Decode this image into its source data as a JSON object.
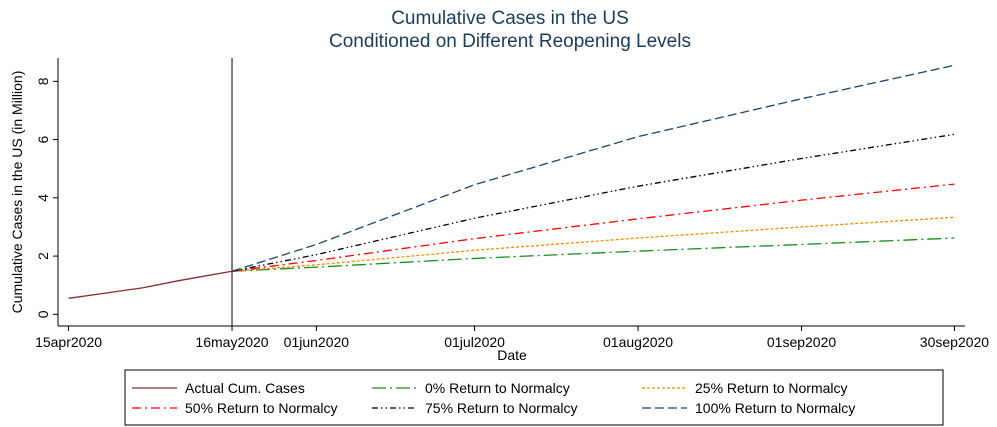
{
  "chart_data": {
    "type": "line",
    "title": "Cumulative Cases in the US",
    "subtitle": "Conditioned on Different Reopening Levels",
    "x_label": "Date",
    "y_label": "Cumulative Cases in the US (in Million)",
    "xlim": [
      "2020-04-13",
      "2020-10-02"
    ],
    "xticks": [
      {
        "value": "2020-04-15",
        "label": "15apr2020"
      },
      {
        "value": "2020-05-16",
        "label": "16may2020"
      },
      {
        "value": "2020-06-01",
        "label": "01jun2020"
      },
      {
        "value": "2020-07-01",
        "label": "01jul2020"
      },
      {
        "value": "2020-08-01",
        "label": "01aug2020"
      },
      {
        "value": "2020-09-01",
        "label": "01sep2020"
      },
      {
        "value": "2020-09-30",
        "label": "30sep2020"
      }
    ],
    "ylim": [
      -0.4,
      8.8
    ],
    "yticks": [
      0,
      2,
      4,
      6,
      8
    ],
    "vline": "2020-05-16",
    "series": [
      {
        "name": "Actual Cum. Cases",
        "color": "#8c2a2a",
        "dash": "none",
        "x": [
          "2020-04-15",
          "2020-04-22",
          "2020-04-29",
          "2020-05-06",
          "2020-05-16"
        ],
        "values": [
          0.55,
          0.73,
          0.91,
          1.16,
          1.48
        ]
      },
      {
        "name": "0% Return to Normalcy",
        "color": "#1a8c1a",
        "dash": "14 4 2 4",
        "x": [
          "2020-05-16",
          "2020-06-01",
          "2020-07-01",
          "2020-08-01",
          "2020-09-01",
          "2020-09-30"
        ],
        "values": [
          1.48,
          1.62,
          1.92,
          2.17,
          2.4,
          2.62
        ]
      },
      {
        "name": "25% Return to Normalcy",
        "color": "#ff8c00",
        "dash": "3 2",
        "x": [
          "2020-05-16",
          "2020-06-01",
          "2020-07-01",
          "2020-08-01",
          "2020-09-01",
          "2020-09-30"
        ],
        "values": [
          1.48,
          1.7,
          2.2,
          2.62,
          3.0,
          3.33
        ]
      },
      {
        "name": "50% Return to Normalcy",
        "color": "#ff0000",
        "dash": "9 4 2 4",
        "x": [
          "2020-05-16",
          "2020-06-01",
          "2020-07-01",
          "2020-08-01",
          "2020-09-01",
          "2020-09-30"
        ],
        "values": [
          1.48,
          1.85,
          2.6,
          3.28,
          3.92,
          4.47
        ]
      },
      {
        "name": "75% Return to Normalcy",
        "color": "#000000",
        "dash": "6 3 1.5 3 1.5 3",
        "x": [
          "2020-05-16",
          "2020-06-01",
          "2020-07-01",
          "2020-08-01",
          "2020-09-01",
          "2020-09-30"
        ],
        "values": [
          1.48,
          2.05,
          3.3,
          4.4,
          5.35,
          6.18
        ]
      },
      {
        "name": "100% Return to Normalcy",
        "color": "#1a476f",
        "dash": "9 4",
        "x": [
          "2020-05-16",
          "2020-06-01",
          "2020-07-01",
          "2020-08-01",
          "2020-09-01",
          "2020-09-30"
        ],
        "values": [
          1.48,
          2.4,
          4.45,
          6.1,
          7.4,
          8.55
        ]
      }
    ]
  }
}
